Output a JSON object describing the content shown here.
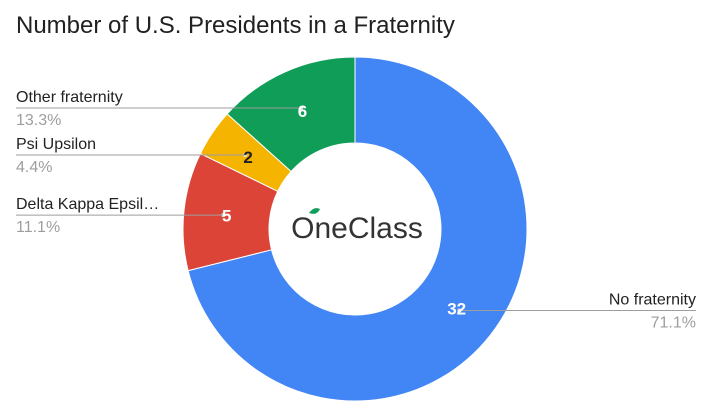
{
  "chart_data": {
    "type": "pie",
    "donut": true,
    "title": "Number of U.S. Presidents in a Fraternity",
    "categories": [
      "No fraternity",
      "Delta Kappa Epsil…",
      "Psi Upsilon",
      "Other fraternity"
    ],
    "values": [
      32,
      5,
      2,
      6
    ],
    "value_labels": [
      "32",
      "5",
      "2",
      "6"
    ],
    "percent_labels": [
      "71.1%",
      "11.1%",
      "4.4%",
      "13.3%"
    ],
    "colors": [
      "#4285f4",
      "#db4437",
      "#f4b400",
      "#0f9d58"
    ],
    "value_label_colors": [
      "#ffffff",
      "#ffffff",
      "#222222",
      "#ffffff"
    ],
    "start_angle_deg": 0,
    "direction": "clockwise",
    "legend": "leader-lines"
  },
  "center_logo": {
    "text": "OneClass",
    "accent_color": "#0f9d58"
  }
}
